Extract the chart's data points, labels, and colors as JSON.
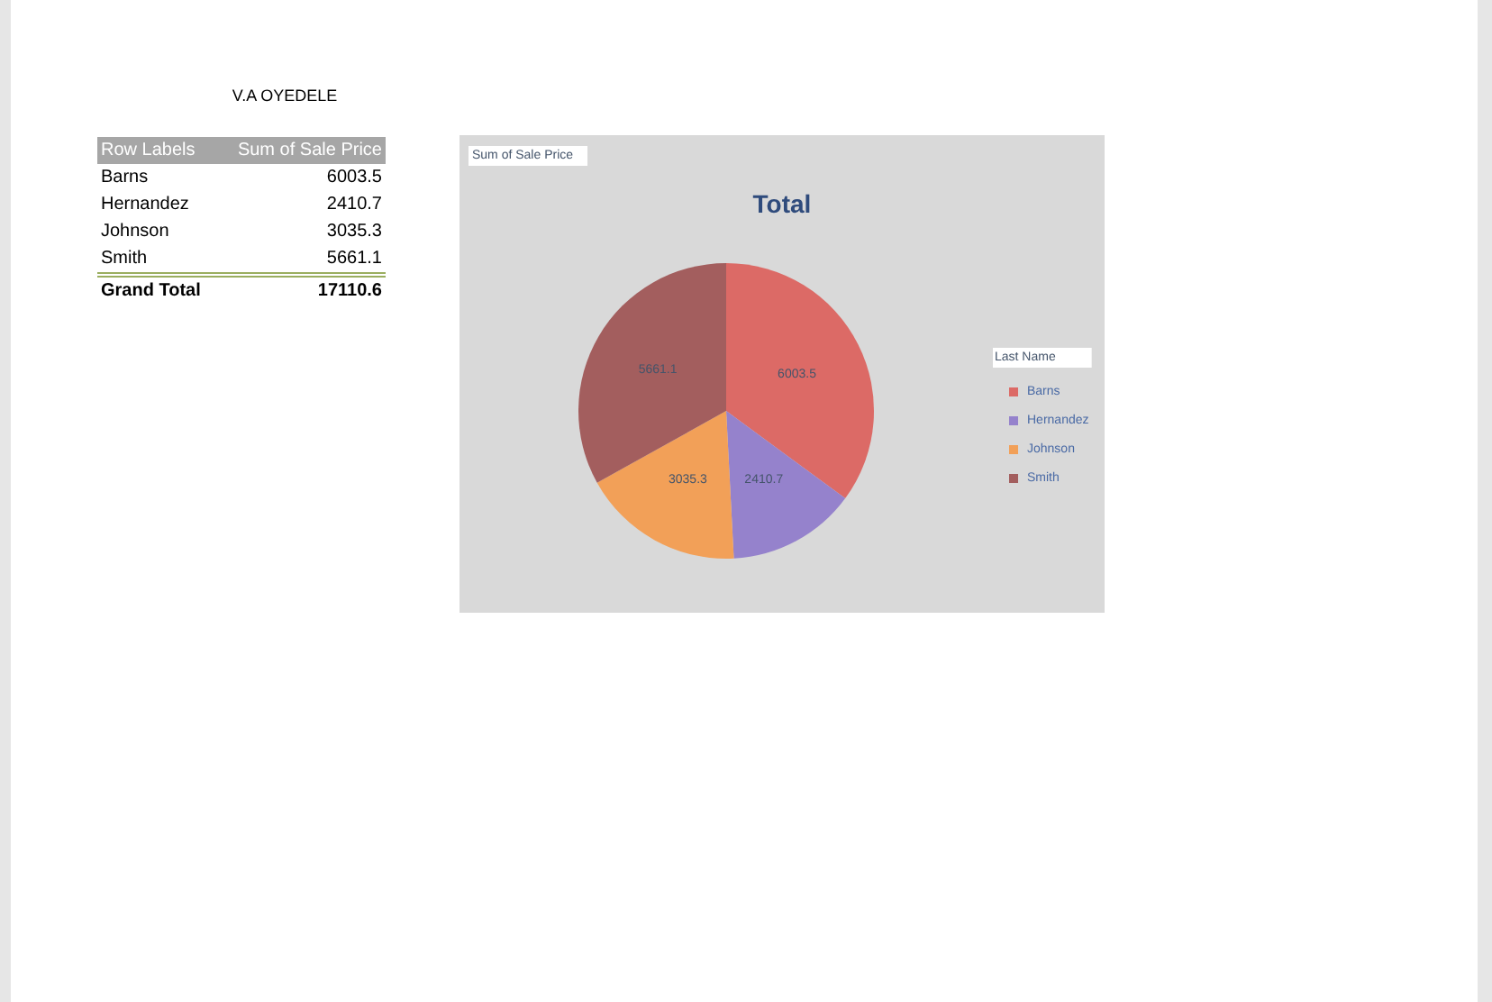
{
  "chart_data": [
    {
      "type": "other",
      "title": "V.A OYEDELE",
      "annotations": [
        "Row Labels",
        "Sum of Sale Price",
        "Barns",
        "6003.5",
        "Hernandez",
        "2410.7",
        "Johnson",
        "3035.3",
        "Smith",
        "5661.1",
        "Grand Total",
        "17110.6"
      ]
    },
    {
      "type": "pie",
      "title": "Total",
      "legend_title": "Last Name",
      "categories": [
        "Barns",
        "Hernandez",
        "Johnson",
        "Smith"
      ],
      "values": [
        6003.5,
        2410.7,
        3035.3,
        5661.1
      ],
      "colors": [
        "#dc6a66",
        "#9582cc",
        "#f2a058",
        "#a35e5e"
      ],
      "data_labels": true,
      "legend": "right",
      "annotations": [
        "Sum of Sale Price"
      ]
    }
  ]
}
